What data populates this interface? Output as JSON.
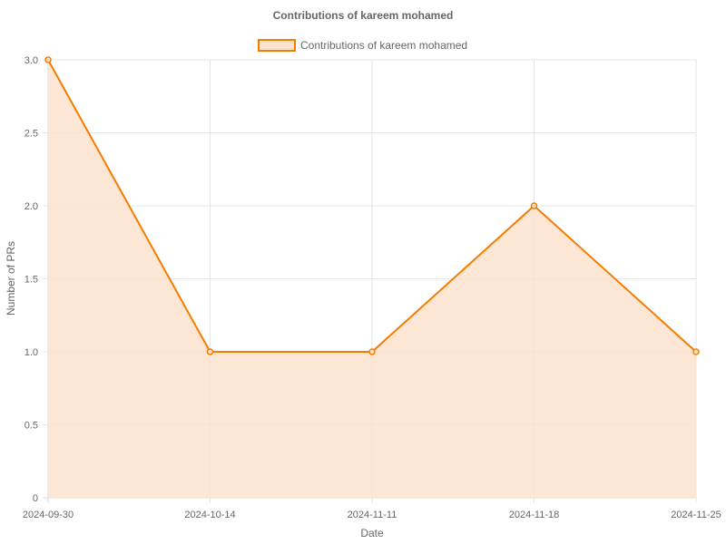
{
  "chart_data": {
    "type": "line",
    "title": "Contributions of kareem mohamed",
    "xlabel": "Date",
    "ylabel": "Number of PRs",
    "categories": [
      "2024-09-30",
      "2024-10-14",
      "2024-11-11",
      "2024-11-18",
      "2024-11-25"
    ],
    "series": [
      {
        "name": "Contributions of kareem mohamed",
        "values": [
          3,
          1,
          1,
          2,
          1
        ]
      }
    ],
    "ylim": [
      0,
      3
    ],
    "yticks": [
      "0",
      "0.5",
      "1.0",
      "1.5",
      "2.0",
      "2.5",
      "3.0"
    ],
    "fill": true,
    "grid": true,
    "legend_position": "top-center",
    "colors": {
      "line": "#f57c00",
      "fill": "#fde3cc",
      "point_fill": "#fde3cc"
    }
  }
}
